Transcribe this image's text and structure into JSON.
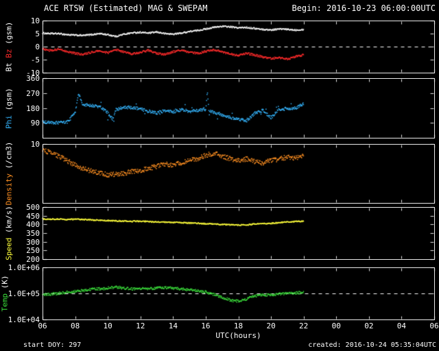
{
  "header": {
    "title": "ACE RTSW (Estimated) MAG & SWEPAM",
    "begin": "Begin: 2016-10-23 06:00:00UTC"
  },
  "footer": {
    "start_doy": "start DOY: 297",
    "created": "created: 2016-10-24 05:35:04UTC"
  },
  "x_axis": {
    "label": "UTC(hours)",
    "ticks": [
      "06",
      "08",
      "10",
      "12",
      "14",
      "16",
      "18",
      "20",
      "22",
      "00",
      "02",
      "04",
      "06"
    ],
    "range_hours": [
      6,
      30
    ]
  },
  "colors": {
    "background": "#000000",
    "text": "#ffffff",
    "frame": "#e9e9e9",
    "bt": "#ffffff",
    "bz": "#ff2b2b",
    "phi": "#35b6ff",
    "density": "#ff9022",
    "speed": "#ffff3b",
    "temp": "#3bdd3b"
  },
  "chart_data": [
    {
      "name": "magnetic-field",
      "type": "scatter",
      "scale": "linear",
      "ylim": [
        -10,
        10
      ],
      "refline": 0,
      "ylabel_parts": [
        {
          "text": "Bt ",
          "color_key": "bt"
        },
        {
          "text": "Bz ",
          "color_key": "bz"
        },
        {
          "text": "(gsm)",
          "color_key": "text"
        }
      ],
      "yticks": [
        {
          "value": 10,
          "label": "10"
        },
        {
          "value": 5,
          "label": "5"
        },
        {
          "value": 0,
          "label": "0"
        },
        {
          "value": -5,
          "label": "-5"
        },
        {
          "value": -10,
          "label": "-10"
        }
      ],
      "series": [
        {
          "name": "Bt",
          "color_key": "bt",
          "points": [
            [
              6,
              5.2
            ],
            [
              6.5,
              5.0
            ],
            [
              7,
              5.0
            ],
            [
              7.5,
              4.6
            ],
            [
              8,
              4.4
            ],
            [
              8.5,
              4.3
            ],
            [
              9,
              4.6
            ],
            [
              9.5,
              5.0
            ],
            [
              10,
              4.6
            ],
            [
              10.5,
              3.9
            ],
            [
              11,
              4.8
            ],
            [
              11.5,
              5.3
            ],
            [
              12,
              5.5
            ],
            [
              12.5,
              5.2
            ],
            [
              13,
              5.6
            ],
            [
              13.5,
              5.0
            ],
            [
              14,
              4.8
            ],
            [
              14.5,
              5.2
            ],
            [
              15,
              5.8
            ],
            [
              15.5,
              6.2
            ],
            [
              16,
              6.8
            ],
            [
              16.5,
              7.4
            ],
            [
              17,
              7.8
            ],
            [
              17.5,
              7.6
            ],
            [
              18,
              7.2
            ],
            [
              18.5,
              7.4
            ],
            [
              19,
              7.0
            ],
            [
              19.5,
              6.6
            ],
            [
              20,
              6.4
            ],
            [
              20.5,
              6.8
            ],
            [
              21,
              6.6
            ],
            [
              21.5,
              6.4
            ],
            [
              22,
              6.6
            ]
          ]
        },
        {
          "name": "Bz",
          "color_key": "bz",
          "points": [
            [
              6,
              -0.8
            ],
            [
              6.5,
              -1.5
            ],
            [
              7,
              -1.0
            ],
            [
              7.5,
              -1.8
            ],
            [
              8,
              -2.6
            ],
            [
              8.5,
              -3.0
            ],
            [
              9,
              -2.2
            ],
            [
              9.5,
              -1.6
            ],
            [
              10,
              -2.4
            ],
            [
              10.5,
              -1.2
            ],
            [
              11,
              -2.0
            ],
            [
              11.5,
              -2.8
            ],
            [
              12,
              -2.2
            ],
            [
              12.5,
              -1.4
            ],
            [
              13,
              -2.6
            ],
            [
              13.5,
              -3.0
            ],
            [
              14,
              -2.0
            ],
            [
              14.5,
              -1.4
            ],
            [
              15,
              -2.2
            ],
            [
              15.5,
              -2.6
            ],
            [
              16,
              -1.8
            ],
            [
              16.5,
              -1.2
            ],
            [
              17,
              -2.0
            ],
            [
              17.5,
              -2.8
            ],
            [
              18,
              -3.4
            ],
            [
              18.5,
              -2.6
            ],
            [
              19,
              -3.2
            ],
            [
              19.5,
              -4.0
            ],
            [
              20,
              -4.6
            ],
            [
              20.5,
              -4.2
            ],
            [
              21,
              -4.8
            ],
            [
              21.5,
              -3.8
            ],
            [
              22,
              -3.2
            ]
          ]
        }
      ]
    },
    {
      "name": "phi-angle",
      "type": "scatter",
      "scale": "linear",
      "ylim": [
        0,
        360
      ],
      "refline": null,
      "ylabel_parts": [
        {
          "text": "Phi ",
          "color_key": "phi"
        },
        {
          "text": "(gsm)",
          "color_key": "text"
        }
      ],
      "yticks": [
        {
          "value": 360,
          "label": "360"
        },
        {
          "value": 270,
          "label": "270"
        },
        {
          "value": 180,
          "label": "180"
        },
        {
          "value": 90,
          "label": "90"
        }
      ],
      "series": [
        {
          "name": "Phi",
          "color_key": "phi",
          "points": [
            [
              6,
              95
            ],
            [
              6.5,
              90
            ],
            [
              7,
              92
            ],
            [
              7.5,
              95
            ],
            [
              8,
              150
            ],
            [
              8.2,
              268
            ],
            [
              8.4,
              215
            ],
            [
              8.5,
              200
            ],
            [
              9,
              195
            ],
            [
              9.5,
              190
            ],
            [
              10,
              150
            ],
            [
              10.3,
              112
            ],
            [
              10.5,
              170
            ],
            [
              11,
              185
            ],
            [
              11.5,
              182
            ],
            [
              12,
              175
            ],
            [
              12.5,
              160
            ],
            [
              13,
              150
            ],
            [
              13.5,
              165
            ],
            [
              14,
              155
            ],
            [
              14.5,
              170
            ],
            [
              15,
              160
            ],
            [
              15.5,
              165
            ],
            [
              16,
              170
            ],
            [
              16.1,
              278
            ],
            [
              16.2,
              160
            ],
            [
              16.5,
              155
            ],
            [
              17,
              140
            ],
            [
              17.5,
              122
            ],
            [
              18,
              115
            ],
            [
              18.5,
              100
            ],
            [
              19,
              150
            ],
            [
              19.5,
              165
            ],
            [
              20,
              120
            ],
            [
              20.5,
              170
            ],
            [
              21,
              175
            ],
            [
              21.5,
              180
            ],
            [
              22,
              205
            ]
          ]
        }
      ]
    },
    {
      "name": "density",
      "type": "scatter",
      "scale": "log",
      "ylim": [
        1,
        10
      ],
      "refline": null,
      "ylabel_parts": [
        {
          "text": "Density ",
          "color_key": "density"
        },
        {
          "text": "(/cm3)",
          "color_key": "text"
        }
      ],
      "yticks": [
        {
          "value": 10,
          "label": "10"
        }
      ],
      "series": [
        {
          "name": "Density",
          "color_key": "density",
          "points": [
            [
              6,
              8.0
            ],
            [
              6.5,
              7.0
            ],
            [
              7,
              6.2
            ],
            [
              7.5,
              5.2
            ],
            [
              8,
              4.4
            ],
            [
              8.5,
              3.8
            ],
            [
              9,
              3.5
            ],
            [
              9.5,
              3.2
            ],
            [
              10,
              3.0
            ],
            [
              10.5,
              3.1
            ],
            [
              11,
              3.2
            ],
            [
              11.5,
              3.4
            ],
            [
              12,
              3.6
            ],
            [
              12.5,
              3.8
            ],
            [
              13,
              4.2
            ],
            [
              13.5,
              4.6
            ],
            [
              14,
              4.4
            ],
            [
              14.5,
              4.8
            ],
            [
              15,
              5.2
            ],
            [
              15.5,
              5.6
            ],
            [
              16,
              6.4
            ],
            [
              16.5,
              7.0
            ],
            [
              17,
              6.2
            ],
            [
              17.5,
              5.6
            ],
            [
              18,
              5.2
            ],
            [
              18.5,
              5.6
            ],
            [
              19,
              5.0
            ],
            [
              19.5,
              4.8
            ],
            [
              20,
              5.2
            ],
            [
              20.5,
              5.6
            ],
            [
              21,
              6.0
            ],
            [
              21.5,
              5.8
            ],
            [
              22,
              6.2
            ]
          ]
        }
      ]
    },
    {
      "name": "speed",
      "type": "scatter",
      "scale": "linear",
      "ylim": [
        200,
        500
      ],
      "refline": null,
      "ylabel_parts": [
        {
          "text": "Speed ",
          "color_key": "speed"
        },
        {
          "text": "(km/s)",
          "color_key": "text"
        }
      ],
      "yticks": [
        {
          "value": 500,
          "label": "500"
        },
        {
          "value": 450,
          "label": "450"
        },
        {
          "value": 400,
          "label": "400"
        },
        {
          "value": 350,
          "label": "350"
        },
        {
          "value": 300,
          "label": "300"
        },
        {
          "value": 250,
          "label": "250"
        },
        {
          "value": 200,
          "label": "200"
        }
      ],
      "series": [
        {
          "name": "Speed",
          "color_key": "speed",
          "points": [
            [
              6,
              432
            ],
            [
              6.5,
              430
            ],
            [
              7,
              431
            ],
            [
              7.5,
              428
            ],
            [
              8,
              430
            ],
            [
              8.5,
              428
            ],
            [
              9,
              426
            ],
            [
              9.5,
              424
            ],
            [
              10,
              422
            ],
            [
              10.5,
              420
            ],
            [
              11,
              420
            ],
            [
              11.5,
              418
            ],
            [
              12,
              419
            ],
            [
              12.5,
              416
            ],
            [
              13,
              414
            ],
            [
              13.5,
              412
            ],
            [
              14,
              412
            ],
            [
              14.5,
              410
            ],
            [
              15,
              408
            ],
            [
              15.5,
              406
            ],
            [
              16,
              404
            ],
            [
              16.5,
              402
            ],
            [
              17,
              400
            ],
            [
              17.5,
              398
            ],
            [
              18,
              396
            ],
            [
              18.5,
              398
            ],
            [
              19,
              402
            ],
            [
              19.5,
              404
            ],
            [
              20,
              406
            ],
            [
              20.5,
              410
            ],
            [
              21,
              414
            ],
            [
              21.5,
              416
            ],
            [
              22,
              420
            ]
          ]
        }
      ]
    },
    {
      "name": "temperature",
      "type": "scatter",
      "scale": "log",
      "ylim": [
        10000,
        1000000
      ],
      "refline": 100000,
      "ylabel_parts": [
        {
          "text": "Temp ",
          "color_key": "temp"
        },
        {
          "text": "(K)",
          "color_key": "text"
        }
      ],
      "yticks": [
        {
          "value": 1000000,
          "label": "1.0E+06"
        },
        {
          "value": 100000,
          "label": "1.0E+05"
        },
        {
          "value": 10000,
          "label": "1.0E+04"
        }
      ],
      "series": [
        {
          "name": "Temp",
          "color_key": "temp",
          "points": [
            [
              6,
              90000
            ],
            [
              6.5,
              95000
            ],
            [
              7,
              100000
            ],
            [
              7.5,
              110000
            ],
            [
              8,
              120000
            ],
            [
              8.5,
              130000
            ],
            [
              9,
              145000
            ],
            [
              9.5,
              150000
            ],
            [
              10,
              160000
            ],
            [
              10.5,
              175000
            ],
            [
              11,
              160000
            ],
            [
              11.5,
              150000
            ],
            [
              12,
              155000
            ],
            [
              12.5,
              150000
            ],
            [
              13,
              160000
            ],
            [
              13.5,
              170000
            ],
            [
              14,
              160000
            ],
            [
              14.5,
              150000
            ],
            [
              15,
              135000
            ],
            [
              15.5,
              125000
            ],
            [
              16,
              115000
            ],
            [
              16.5,
              90000
            ],
            [
              17,
              70000
            ],
            [
              17.5,
              55000
            ],
            [
              18,
              50000
            ],
            [
              18.5,
              60000
            ],
            [
              19,
              80000
            ],
            [
              19.5,
              90000
            ],
            [
              20,
              85000
            ],
            [
              20.5,
              95000
            ],
            [
              21,
              100000
            ],
            [
              21.5,
              105000
            ],
            [
              22,
              110000
            ]
          ]
        }
      ]
    }
  ]
}
